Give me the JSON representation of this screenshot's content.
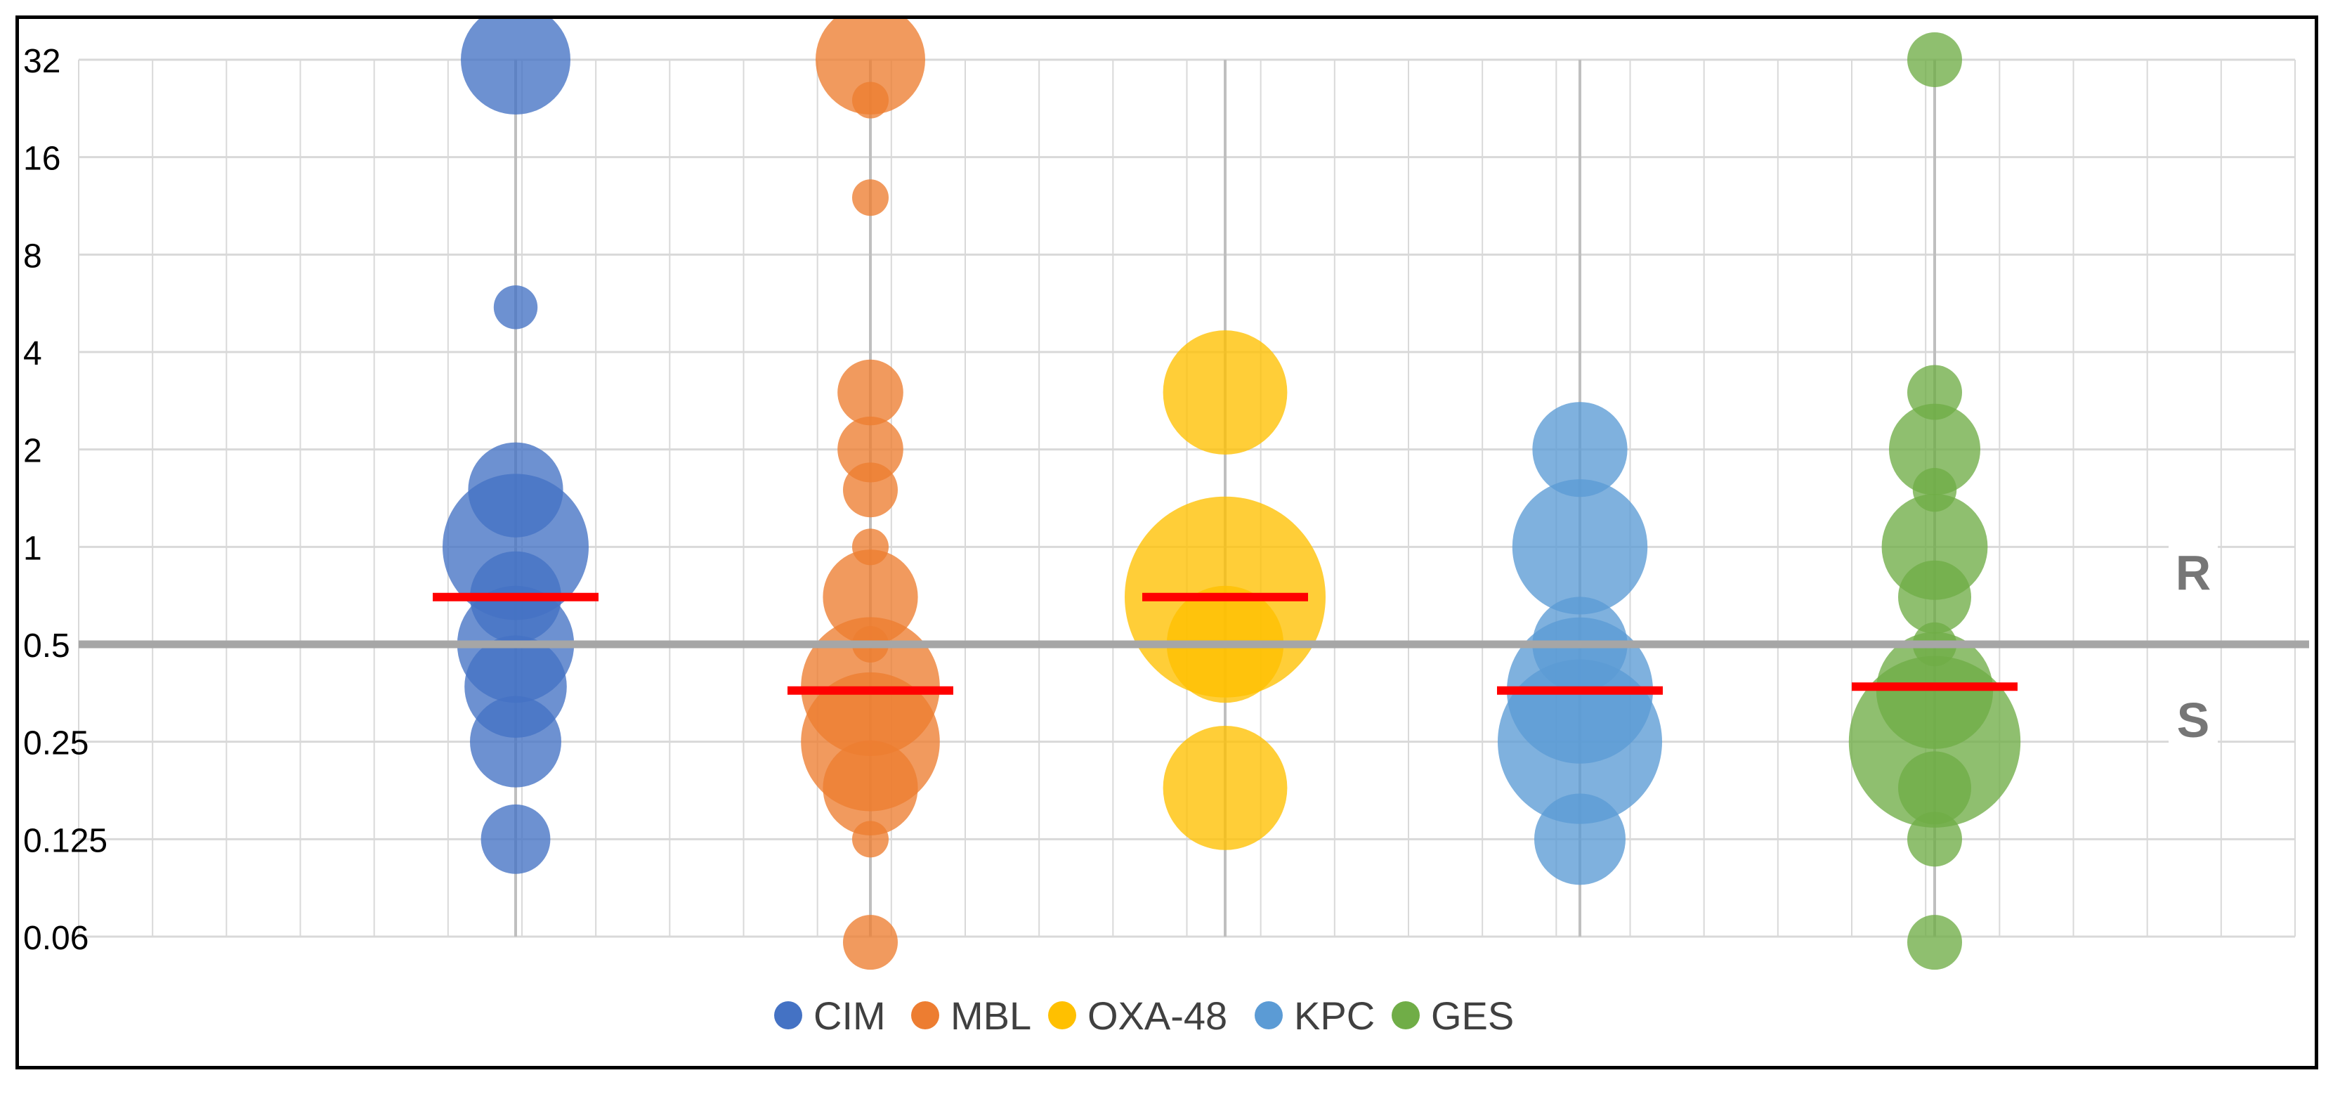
{
  "chart_data": {
    "type": "bubble",
    "title": "",
    "xlabel": "",
    "ylabel": "",
    "y_scale": "log2",
    "ylim": [
      0.06,
      32
    ],
    "y_ticks": [
      "32",
      "16",
      "8",
      "4",
      "2",
      "1",
      "0.5",
      "0.25",
      "0.125",
      "0.06"
    ],
    "breakpoint": 0.5,
    "zone_labels": {
      "resistant": "R",
      "susceptible": "S"
    },
    "legend": [
      "CIM",
      "MBL",
      "OXA-48",
      "KPC",
      "GES"
    ],
    "series": [
      {
        "name": "CIM",
        "color": "#4472C4",
        "x": 1,
        "median": 0.7,
        "points": [
          {
            "y": 32,
            "size": 1.5
          },
          {
            "y": 5.5,
            "size": 0.6
          },
          {
            "y": 1.5,
            "size": 1.3
          },
          {
            "y": 1.0,
            "size": 2.0
          },
          {
            "y": 0.7,
            "size": 1.25
          },
          {
            "y": 0.5,
            "size": 1.6
          },
          {
            "y": 0.37,
            "size": 1.4
          },
          {
            "y": 0.25,
            "size": 1.25
          },
          {
            "y": 0.125,
            "size": 0.95
          }
        ]
      },
      {
        "name": "MBL",
        "color": "#ED7D31",
        "x": 2,
        "median": 0.36,
        "points": [
          {
            "y": 32,
            "size": 1.5
          },
          {
            "y": 24,
            "size": 0.5
          },
          {
            "y": 12,
            "size": 0.5
          },
          {
            "y": 3,
            "size": 0.9
          },
          {
            "y": 2,
            "size": 0.9
          },
          {
            "y": 1.5,
            "size": 0.75
          },
          {
            "y": 1.0,
            "size": 0.5
          },
          {
            "y": 0.7,
            "size": 1.3
          },
          {
            "y": 0.5,
            "size": 0.5
          },
          {
            "y": 0.37,
            "size": 1.9
          },
          {
            "y": 0.25,
            "size": 1.9
          },
          {
            "y": 0.18,
            "size": 1.3
          },
          {
            "y": 0.125,
            "size": 0.5
          },
          {
            "y": 0.06,
            "size": 0.75
          }
        ]
      },
      {
        "name": "OXA-48",
        "color": "#FFC000",
        "x": 3,
        "median": 0.7,
        "points": [
          {
            "y": 3,
            "size": 1.7
          },
          {
            "y": 0.7,
            "size": 2.75
          },
          {
            "y": 0.5,
            "size": 1.6
          },
          {
            "y": 0.18,
            "size": 1.7
          }
        ]
      },
      {
        "name": "KPC",
        "color": "#5B9BD5",
        "x": 4,
        "median": 0.36,
        "points": [
          {
            "y": 2,
            "size": 1.3
          },
          {
            "y": 1.0,
            "size": 1.85
          },
          {
            "y": 0.5,
            "size": 1.3
          },
          {
            "y": 0.36,
            "size": 2.0
          },
          {
            "y": 0.25,
            "size": 2.25
          },
          {
            "y": 0.125,
            "size": 1.25
          }
        ]
      },
      {
        "name": "GES",
        "color": "#70AD47",
        "x": 5,
        "median": 0.37,
        "points": [
          {
            "y": 32,
            "size": 0.75
          },
          {
            "y": 3,
            "size": 0.75
          },
          {
            "y": 2,
            "size": 1.25
          },
          {
            "y": 1.5,
            "size": 0.6
          },
          {
            "y": 1.0,
            "size": 1.45
          },
          {
            "y": 0.7,
            "size": 1.0
          },
          {
            "y": 0.5,
            "size": 0.6
          },
          {
            "y": 0.36,
            "size": 1.6
          },
          {
            "y": 0.25,
            "size": 2.35
          },
          {
            "y": 0.18,
            "size": 1.0
          },
          {
            "y": 0.125,
            "size": 0.75
          },
          {
            "y": 0.06,
            "size": 0.75
          }
        ]
      }
    ]
  },
  "colors": {
    "median_line": "#FF0000",
    "breakpoint_line": "#A6A6A6",
    "zone_label": "#767676",
    "grid": "#D9D9D9",
    "axis_text": "#000000"
  }
}
